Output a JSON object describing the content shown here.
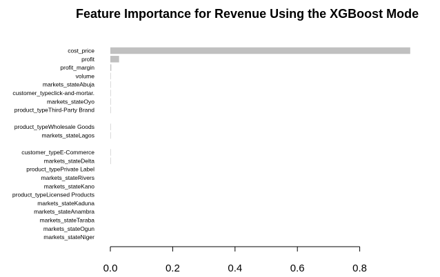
{
  "chart_data": {
    "type": "bar",
    "orientation": "horizontal",
    "title": "Feature Importance for Revenue Using the XGBoost Mode",
    "xlabel": "",
    "ylabel": "",
    "bar_color": "#c0c0c0",
    "xlim": [
      0,
      0.98
    ],
    "ticks": [
      0.0,
      0.2,
      0.4,
      0.6,
      0.8
    ],
    "tick_labels": [
      "0.0",
      "0.2",
      "0.4",
      "0.6",
      "0.8"
    ],
    "grid": false,
    "categories": [
      "cost_price",
      "profit",
      "profit_margin",
      "volume",
      "markets_stateAbuja",
      "customer_typeclick-and-mortar.",
      "markets_stateOyo",
      "product_typeThird-Party Brand",
      "",
      "product_typeWholesale Goods",
      "markets_stateLagos",
      "",
      "customer_typeE-Commerce",
      "markets_stateDelta",
      "product_typePrivate Label",
      "markets_stateRivers",
      "markets_stateKano",
      "product_typeLicensed Products",
      "markets_stateKaduna",
      "markets_stateAnambra",
      "markets_stateTaraba",
      "markets_stateOgun",
      "markets_stateNiger"
    ],
    "values": [
      0.962,
      0.028,
      0.003,
      0.001,
      0.0002,
      0.0001,
      0.0001,
      0.0001,
      0,
      0.0001,
      0.0001,
      0,
      0.0001,
      0.0001,
      0,
      0,
      0,
      0,
      0,
      0,
      0,
      0,
      0
    ]
  }
}
